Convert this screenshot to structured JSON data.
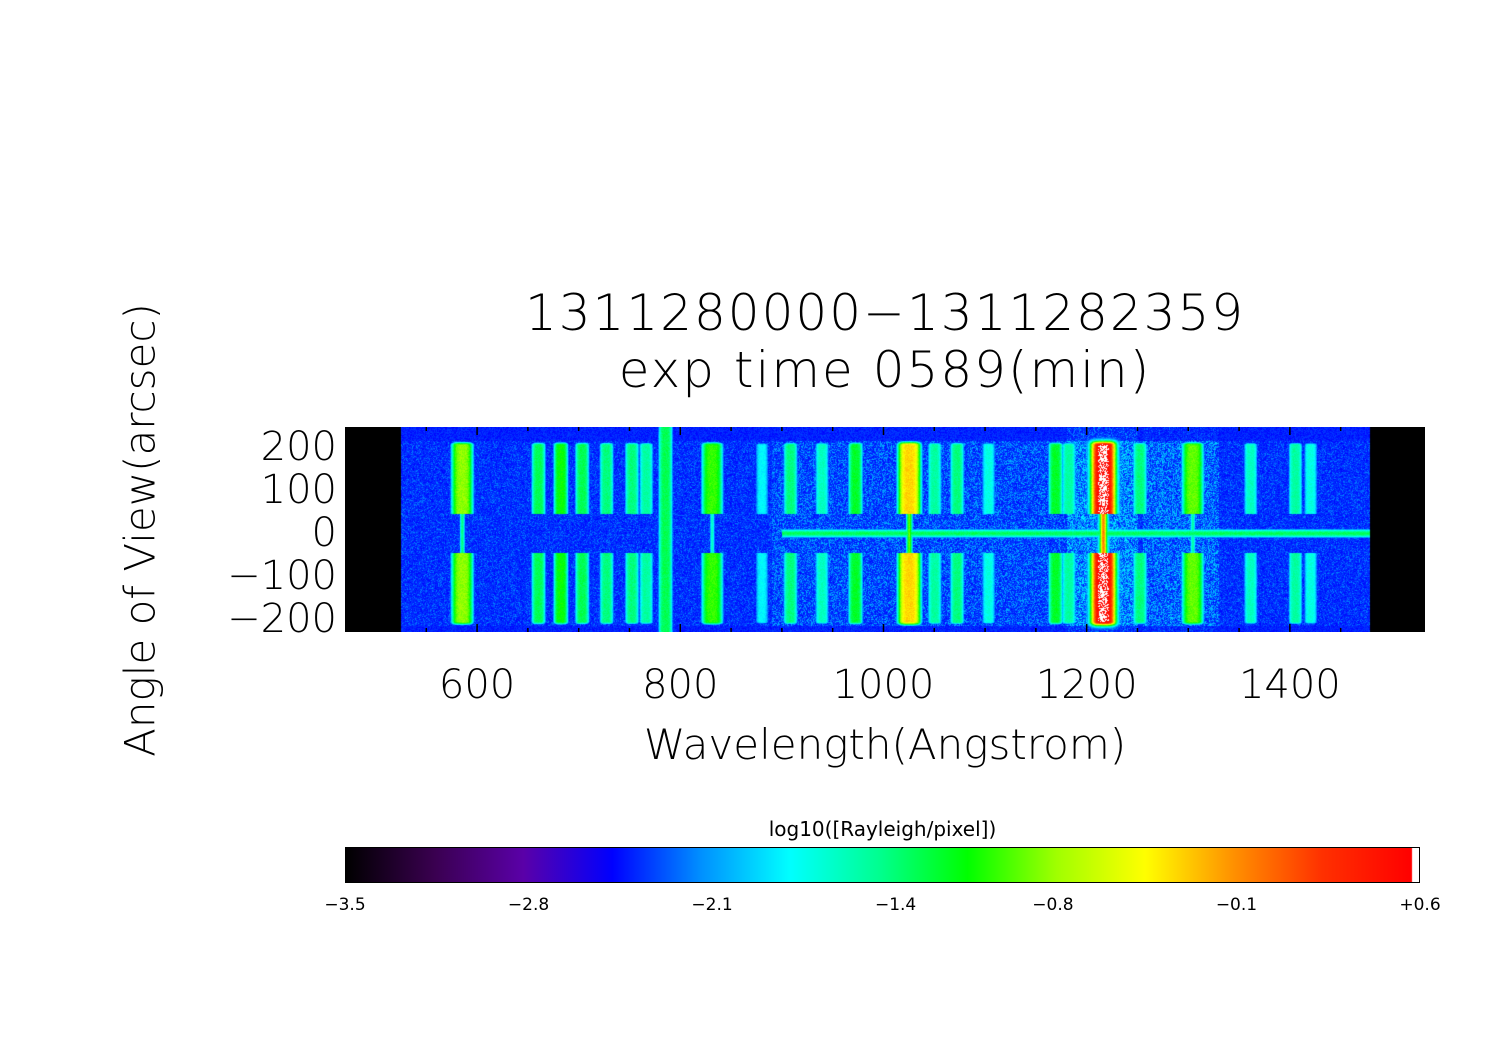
{
  "chart_data": {
    "type": "heatmap",
    "title": [
      "1311280000−1311282359",
      "exp time 0589(min)"
    ],
    "xlabel": "Wavelength(Angstrom)",
    "ylabel": "Angle of View(arcsec)",
    "xlim": [
      470,
      1533
    ],
    "ylim": [
      -230,
      246
    ],
    "xticks": [
      600,
      800,
      1000,
      1200,
      1400
    ],
    "xtick_labels": [
      "600",
      "800",
      "1000",
      "1200",
      "1400"
    ],
    "yticks": [
      200,
      100,
      0,
      -100,
      -200
    ],
    "ytick_labels": [
      "200",
      "100",
      "0",
      "−100",
      "−200"
    ],
    "data_extent_wavelength": [
      525,
      1478
    ],
    "colormap": [
      "#000000",
      "#3a0050",
      "#5a00a8",
      "#0000ff",
      "#0090ff",
      "#00ffff",
      "#00ff90",
      "#00ff00",
      "#a0ff00",
      "#ffff00",
      "#ff9000",
      "#ff3000",
      "#ff0000",
      "#ffffff"
    ],
    "colorbar": {
      "label": "log10([Rayleigh/pixel])",
      "range": [
        -3.5,
        0.6
      ],
      "ticks": [
        -3.5,
        -2.8,
        -2.1,
        -1.4,
        -0.8,
        -0.1,
        0.6
      ],
      "tick_labels": [
        "−3.5",
        "−2.8",
        "−2.1",
        "−1.4",
        "−0.8",
        "−0.1",
        "+0.6"
      ]
    },
    "emission_lines": [
      {
        "wavelength": 585,
        "peak": -0.8,
        "hourglass": true
      },
      {
        "wavelength": 660,
        "peak": -1.3
      },
      {
        "wavelength": 682,
        "peak": -1.1
      },
      {
        "wavelength": 703,
        "peak": -1.3
      },
      {
        "wavelength": 727,
        "peak": -1.4
      },
      {
        "wavelength": 752,
        "peak": -1.4
      },
      {
        "wavelength": 766,
        "peak": -1.5
      },
      {
        "wavelength": 785,
        "peak": -1.3,
        "full_height": true
      },
      {
        "wavelength": 831,
        "peak": -1.0,
        "hourglass": true
      },
      {
        "wavelength": 880,
        "peak": -1.8
      },
      {
        "wavelength": 908,
        "peak": -1.4
      },
      {
        "wavelength": 939,
        "peak": -1.6
      },
      {
        "wavelength": 972,
        "peak": -1.2
      },
      {
        "wavelength": 1025,
        "peak": -0.3,
        "hourglass": true
      },
      {
        "wavelength": 1050,
        "peak": -1.5
      },
      {
        "wavelength": 1072,
        "peak": -1.4
      },
      {
        "wavelength": 1103,
        "peak": -1.7
      },
      {
        "wavelength": 1169,
        "peak": -1.2
      },
      {
        "wavelength": 1182,
        "peak": -1.5
      },
      {
        "wavelength": 1216,
        "peak": 0.6,
        "hourglass": true
      },
      {
        "wavelength": 1252,
        "peak": -1.4
      },
      {
        "wavelength": 1304,
        "peak": -0.9,
        "hourglass": true
      },
      {
        "wavelength": 1361,
        "peak": -1.6
      },
      {
        "wavelength": 1405,
        "peak": -1.5
      },
      {
        "wavelength": 1420,
        "peak": -1.7
      }
    ],
    "central_band": {
      "wavelength_range": [
        900,
        1478
      ],
      "value": -1.3
    }
  }
}
